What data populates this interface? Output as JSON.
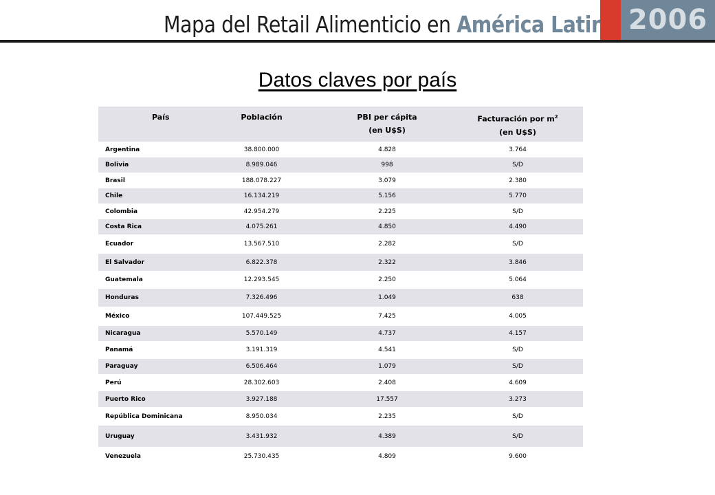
{
  "header": {
    "title_prefix": "Mapa del Retail Alimenticio en ",
    "title_highlight": "América Latina",
    "year": "2006"
  },
  "page_title": "Datos claves por país",
  "table": {
    "headers": {
      "country": "País",
      "population": "Población",
      "gdp_line1": "PBI per cápita",
      "gdp_line2": "(en U$S)",
      "sales_line1": "Facturación por m",
      "sales_sup": "2",
      "sales_line2": "(en U$S)"
    },
    "rows": [
      {
        "country": "Argentina",
        "population": "38.800.000",
        "gdp": "4.828",
        "sales": "3.764"
      },
      {
        "country": "Bolivia",
        "population": "8.989.046",
        "gdp": "998",
        "sales": "S/D"
      },
      {
        "country": "Brasil",
        "population": "188.078.227",
        "gdp": "3.079",
        "sales": "2.380"
      },
      {
        "country": "Chile",
        "population": "16.134.219",
        "gdp": "5.156",
        "sales": "5.770"
      },
      {
        "country": "Colombia",
        "population": "42.954.279",
        "gdp": "2.225",
        "sales": "S/D"
      },
      {
        "country": "Costa Rica",
        "population": "4.075.261",
        "gdp": "4.850",
        "sales": "4.490"
      },
      {
        "country": "Ecuador",
        "population": "13.567.510",
        "gdp": "2.282",
        "sales": "S/D"
      },
      {
        "country": "El Salvador",
        "population": "6.822.378",
        "gdp": "2.322",
        "sales": "3.846"
      },
      {
        "country": "Guatemala",
        "population": "12.293.545",
        "gdp": "2.250",
        "sales": "5.064"
      },
      {
        "country": "Honduras",
        "population": "7.326.496",
        "gdp": "1.049",
        "sales": "638"
      },
      {
        "country": "México",
        "population": "107.449.525",
        "gdp": "7.425",
        "sales": "4.005"
      },
      {
        "country": "Nicaragua",
        "population": "5.570.149",
        "gdp": "4.737",
        "sales": "4.157"
      },
      {
        "country": "Panamá",
        "population": "3.191.319",
        "gdp": "4.541",
        "sales": "S/D"
      },
      {
        "country": "Paraguay",
        "population": "6.506.464",
        "gdp": "1.079",
        "sales": "S/D"
      },
      {
        "country": "Perú",
        "population": "28.302.603",
        "gdp": "2.408",
        "sales": "4.609"
      },
      {
        "country": "Puerto Rico",
        "population": "3.927.188",
        "gdp": "17.557",
        "sales": "3.273"
      },
      {
        "country": "República Dominicana",
        "population": "8.950.034",
        "gdp": "2.235",
        "sales": "S/D"
      },
      {
        "country": "Uruguay",
        "population": "3.431.932",
        "gdp": "4.389",
        "sales": "S/D"
      },
      {
        "country": "Venezuela",
        "population": "25.730.435",
        "gdp": "4.809",
        "sales": "9.600"
      }
    ]
  }
}
